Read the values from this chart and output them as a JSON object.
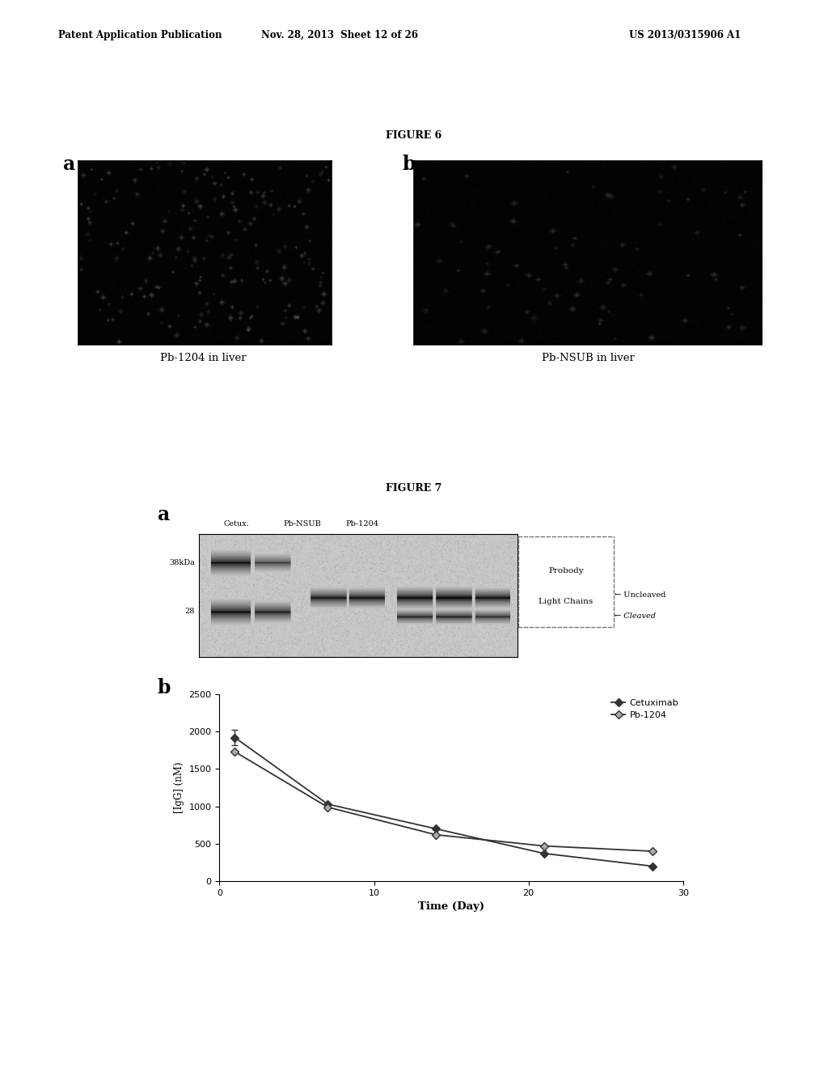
{
  "header_left": "Patent Application Publication",
  "header_mid": "Nov. 28, 2013  Sheet 12 of 26",
  "header_right": "US 2013/0315906 A1",
  "figure6_title": "FIGURE 6",
  "figure7_title": "FIGURE 7",
  "label_a6": "a",
  "label_b6": "b",
  "caption_a": "Pb-1204 in liver",
  "caption_b": "Pb-NSUB in liver",
  "fig7a_label": "a",
  "fig7b_label": "b",
  "fig7a_cols": [
    "Cetux.",
    "Pb-NSUB",
    "Pb-1204"
  ],
  "fig7a_box_label_1": "Probody",
  "fig7a_box_label_2": "Light Chains",
  "fig7a_kda_labels": [
    "38kDa",
    "28"
  ],
  "fig7a_arrow_uncleaved": "Uncleaved",
  "fig7a_arrow_cleaved": "Cleaved",
  "line_cetuximab_x": [
    1,
    7,
    14,
    21,
    28
  ],
  "line_cetuximab_y": [
    1920,
    1030,
    700,
    370,
    200
  ],
  "line_pb1204_x": [
    1,
    7,
    14,
    21,
    28
  ],
  "line_pb1204_y": [
    1730,
    990,
    620,
    470,
    400
  ],
  "plot_xlabel": "Time (Day)",
  "plot_ylabel": "[IgG] (nM)",
  "plot_ylim": [
    0,
    2500
  ],
  "plot_xlim": [
    0,
    30
  ],
  "plot_yticks": [
    0,
    500,
    1000,
    1500,
    2000,
    2500
  ],
  "plot_xticks": [
    0,
    10,
    20,
    30
  ],
  "legend_cetuximab": "Cetuximab",
  "legend_pb1204": "Pb-1204",
  "line_color": "#333333",
  "bg_color": "#ffffff"
}
